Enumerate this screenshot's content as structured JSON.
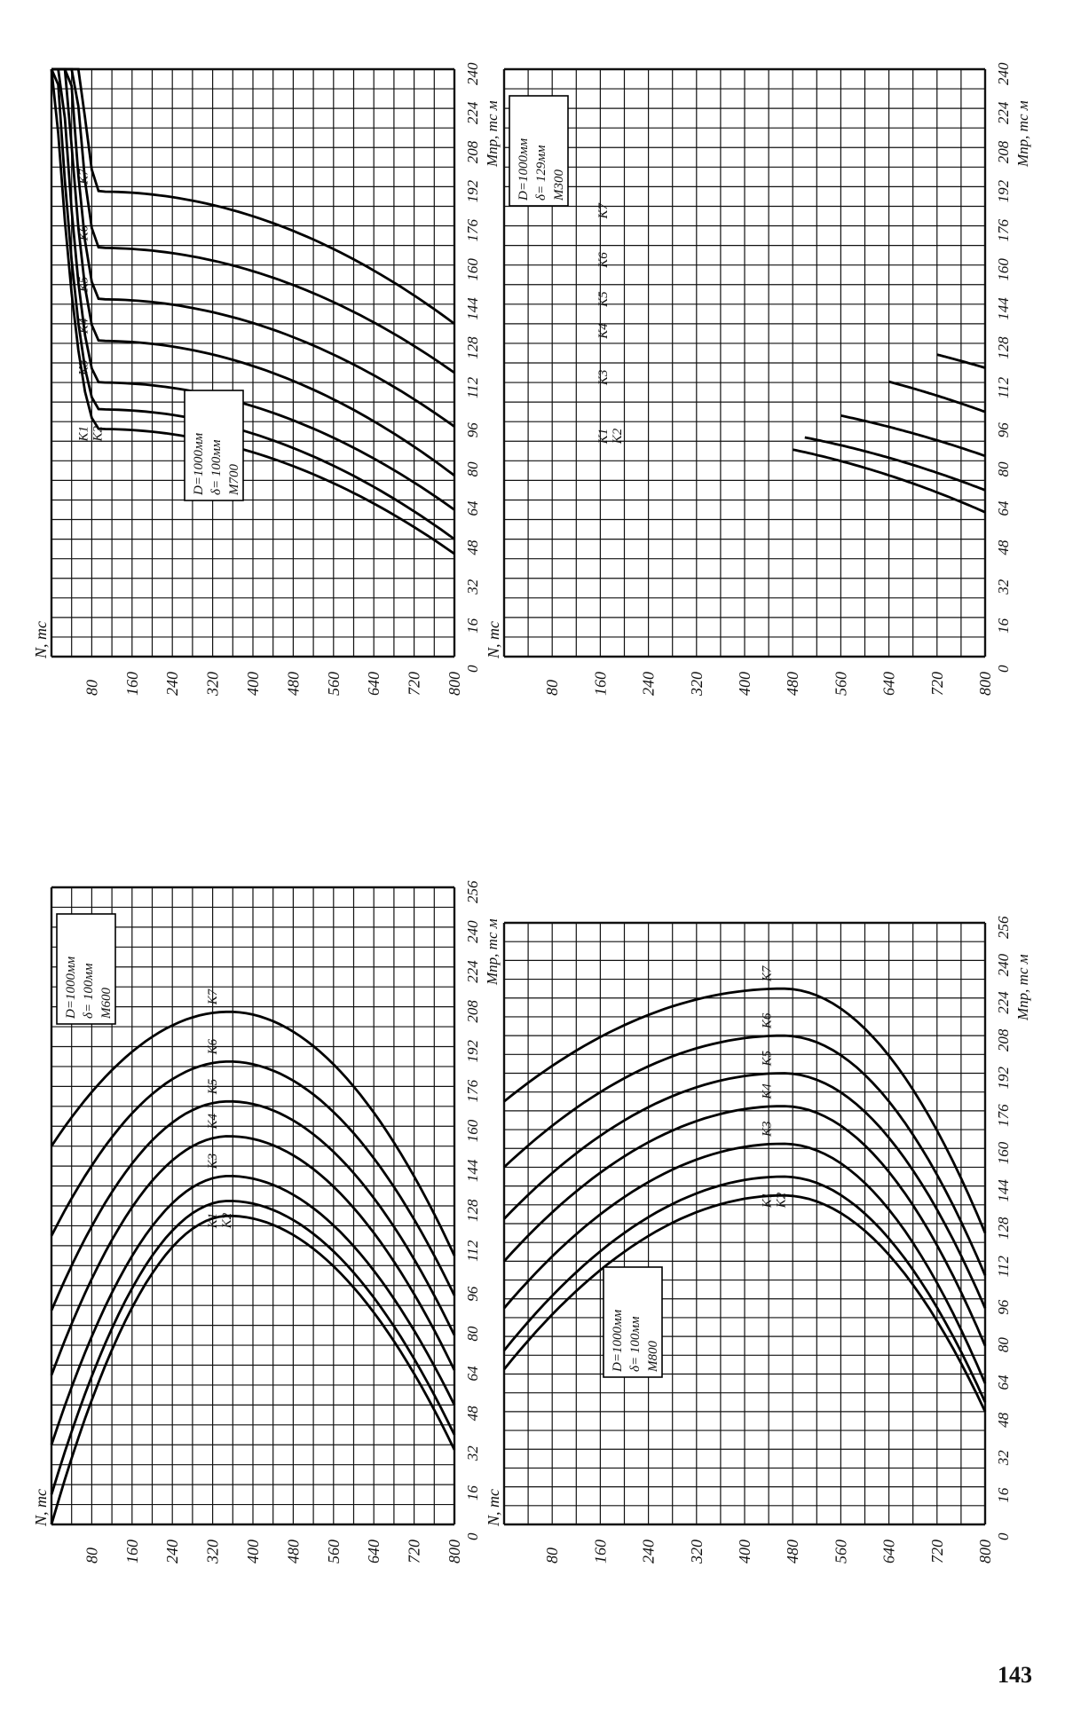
{
  "page_number": "143",
  "chart_data": [
    {
      "type": "line",
      "ylabel": "N, тс",
      "xlabel": "Mпр, тс м",
      "y_ticks": [
        "800",
        "720",
        "640",
        "560",
        "480",
        "400",
        "320",
        "240",
        "160",
        "80"
      ],
      "x_ticks": [
        "0",
        "16",
        "32",
        "48",
        "64",
        "80",
        "96",
        "112",
        "128",
        "144",
        "160",
        "176",
        "192",
        "208",
        "224",
        "240"
      ],
      "xlim": [
        0,
        240
      ],
      "ylim": [
        0,
        800
      ],
      "annotation": [
        "D=1000мм",
        "δ= 100мм",
        "M700"
      ],
      "series_labels": [
        "K1",
        "K2",
        "K3",
        "K4",
        "K5",
        "K6",
        "K7"
      ],
      "peak_x": 96,
      "series": [
        {
          "name": "K1",
          "peak": 93,
          "left_end": [
            0,
            256
          ],
          "right_end": [
            800,
            42
          ]
        },
        {
          "name": "K2",
          "peak": 101,
          "left_end": [
            0,
            280
          ],
          "right_end": [
            800,
            48
          ]
        },
        {
          "name": "K3",
          "peak": 112,
          "left_end": [
            0,
            319
          ],
          "right_end": [
            800,
            60
          ]
        },
        {
          "name": "K4",
          "peak": 129,
          "left_end": [
            0,
            363
          ],
          "right_end": [
            800,
            74
          ]
        },
        {
          "name": "K5",
          "peak": 146,
          "left_end": [
            0,
            402
          ],
          "right_end": [
            800,
            94
          ]
        },
        {
          "name": "K6",
          "peak": 167,
          "left_end": [
            0,
            460
          ],
          "right_end": [
            800,
            116
          ]
        },
        {
          "name": "K7",
          "peak": 190,
          "left_end": [
            0,
            513
          ],
          "right_end": [
            800,
            136
          ]
        }
      ]
    },
    {
      "type": "line",
      "ylabel": "N, тс",
      "xlabel": "Mпр, тс м",
      "y_ticks": [
        "800",
        "720",
        "640",
        "560",
        "480",
        "400",
        "320",
        "240",
        "160",
        "80"
      ],
      "x_ticks": [
        "0",
        "16",
        "32",
        "48",
        "64",
        "80",
        "96",
        "112",
        "128",
        "144",
        "160",
        "176",
        "192",
        "208",
        "224",
        "240"
      ],
      "xlim": [
        0,
        240
      ],
      "ylim": [
        0,
        800
      ],
      "annotation": [
        "D=1000мм",
        "δ= 129мм",
        "M300"
      ],
      "series_labels": [
        "K1",
        "K2",
        "K3",
        "K4",
        "K5",
        "K6",
        "K7"
      ],
      "peak_x": 192,
      "series": [
        {
          "name": "K1",
          "peak": 92,
          "left_end": [
            480,
            0
          ],
          "right_end": [
            800,
            59
          ]
        },
        {
          "name": "K2",
          "peak": 97,
          "left_end": [
            500,
            0
          ],
          "right_end": [
            800,
            68
          ]
        },
        {
          "name": "K3",
          "peak": 108,
          "left_end": [
            560,
            0
          ],
          "right_end": [
            800,
            82
          ]
        },
        {
          "name": "K4",
          "peak": 127,
          "left_end": [
            640,
            0
          ],
          "right_end": [
            800,
            100
          ]
        },
        {
          "name": "K5",
          "peak": 140,
          "left_end": [
            720,
            0
          ],
          "right_end": [
            800,
            118
          ]
        },
        {
          "name": "K6",
          "peak": 156,
          "left_end": [
            800,
            8
          ],
          "right_end": [
            800,
            132
          ]
        },
        {
          "name": "K7",
          "peak": 176,
          "left_end": [
            800,
            36
          ],
          "right_end": [
            800,
            152
          ]
        }
      ]
    },
    {
      "type": "line",
      "ylabel": "N, тс",
      "xlabel": "Mпр, тс м",
      "y_ticks": [
        "800",
        "720",
        "640",
        "560",
        "480",
        "400",
        "320",
        "240",
        "160",
        "80"
      ],
      "x_ticks": [
        "0",
        "16",
        "32",
        "48",
        "64",
        "80",
        "96",
        "112",
        "128",
        "144",
        "160",
        "176",
        "192",
        "208",
        "224",
        "240",
        "256"
      ],
      "xlim": [
        0,
        256
      ],
      "ylim": [
        0,
        800
      ],
      "annotation": [
        "D=1000мм",
        "δ= 100мм",
        "M600"
      ],
      "series_labels": [
        "K1",
        "K2",
        "K3",
        "K4",
        "K5",
        "K6",
        "K7"
      ],
      "peak_x": 352,
      "series": [
        {
          "name": "K1",
          "peak": 124,
          "left_end": [
            0,
            0
          ],
          "right_end": [
            800,
            30
          ]
        },
        {
          "name": "K2",
          "peak": 130,
          "left_end": [
            0,
            12
          ],
          "right_end": [
            800,
            36
          ]
        },
        {
          "name": "K3",
          "peak": 140,
          "left_end": [
            0,
            32
          ],
          "right_end": [
            800,
            48
          ]
        },
        {
          "name": "K4",
          "peak": 156,
          "left_end": [
            0,
            60
          ],
          "right_end": [
            800,
            62
          ]
        },
        {
          "name": "K5",
          "peak": 170,
          "left_end": [
            0,
            86
          ],
          "right_end": [
            800,
            76
          ]
        },
        {
          "name": "K6",
          "peak": 186,
          "left_end": [
            0,
            116
          ],
          "right_end": [
            800,
            92
          ]
        },
        {
          "name": "K7",
          "peak": 206,
          "left_end": [
            0,
            152
          ],
          "right_end": [
            800,
            108
          ]
        }
      ]
    },
    {
      "type": "line",
      "ylabel": "N, тс",
      "xlabel": "Mпр, тс м",
      "y_ticks": [
        "800",
        "720",
        "640",
        "560",
        "480",
        "400",
        "320",
        "240",
        "160",
        "80"
      ],
      "x_ticks": [
        "0",
        "16",
        "32",
        "48",
        "64",
        "80",
        "96",
        "112",
        "128",
        "144",
        "160",
        "176",
        "192",
        "208",
        "224",
        "240",
        "256"
      ],
      "xlim": [
        0,
        256
      ],
      "ylim": [
        0,
        800
      ],
      "annotation": [
        "D=1000мм",
        "δ= 100мм",
        "M800"
      ],
      "series_labels": [
        "K1",
        "K2",
        "K3",
        "K4",
        "K5",
        "K6",
        "K7"
      ],
      "peak_x": 464,
      "series": [
        {
          "name": "K1",
          "peak": 140,
          "left_end": [
            0,
            66
          ],
          "right_end": [
            800,
            48
          ]
        },
        {
          "name": "K2",
          "peak": 148,
          "left_end": [
            0,
            74
          ],
          "right_end": [
            800,
            52
          ]
        },
        {
          "name": "K3",
          "peak": 162,
          "left_end": [
            0,
            92
          ],
          "right_end": [
            800,
            60
          ]
        },
        {
          "name": "K4",
          "peak": 178,
          "left_end": [
            0,
            112
          ],
          "right_end": [
            800,
            76
          ]
        },
        {
          "name": "K5",
          "peak": 192,
          "left_end": [
            0,
            130
          ],
          "right_end": [
            800,
            92
          ]
        },
        {
          "name": "K6",
          "peak": 208,
          "left_end": [
            0,
            152
          ],
          "right_end": [
            800,
            106
          ]
        },
        {
          "name": "K7",
          "peak": 228,
          "left_end": [
            0,
            180
          ],
          "right_end": [
            800,
            124
          ]
        }
      ]
    }
  ]
}
